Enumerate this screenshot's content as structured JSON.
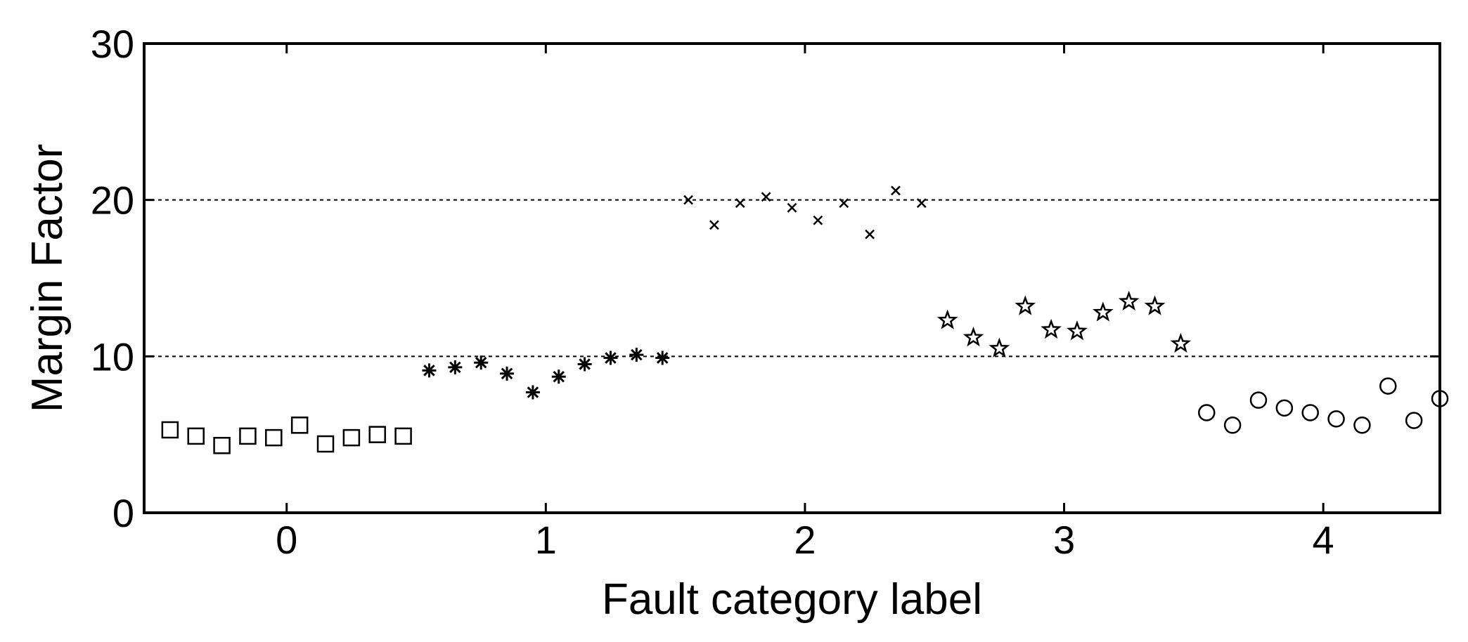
{
  "chart_data": {
    "type": "scatter",
    "title": "",
    "xlabel": "Fault category label",
    "ylabel": "Margin Factor",
    "xlim": [
      -0.55,
      4.45
    ],
    "ylim": [
      0,
      30
    ],
    "xticks": [
      0,
      1,
      2,
      3,
      4
    ],
    "yticks": [
      0,
      10,
      20,
      30
    ],
    "reference_lines": [
      10,
      20
    ],
    "grid": false,
    "legend": "none",
    "colors": {
      "marker": "#000000",
      "axis": "#000000",
      "refline": "#000000"
    },
    "series": [
      {
        "marker": "square",
        "x": [
          -0.45,
          -0.35,
          -0.25,
          -0.15,
          -0.05,
          0.05,
          0.15,
          0.25,
          0.35,
          0.45
        ],
        "y": [
          5.3,
          4.9,
          4.3,
          4.9,
          4.8,
          5.6,
          4.4,
          4.8,
          5.0,
          4.9
        ]
      },
      {
        "marker": "asterisk",
        "x": [
          0.55,
          0.65,
          0.75,
          0.85,
          0.95,
          1.05,
          1.15,
          1.25,
          1.35,
          1.45
        ],
        "y": [
          9.1,
          9.3,
          9.6,
          8.9,
          7.7,
          8.7,
          9.5,
          9.9,
          10.1,
          9.9
        ]
      },
      {
        "marker": "x",
        "x": [
          1.55,
          1.65,
          1.75,
          1.85,
          1.95,
          2.05,
          2.15,
          2.25,
          2.35,
          2.45
        ],
        "y": [
          20.0,
          18.4,
          19.8,
          20.2,
          19.5,
          18.7,
          19.8,
          17.8,
          20.6,
          19.8
        ]
      },
      {
        "marker": "pentagram",
        "x": [
          2.55,
          2.65,
          2.75,
          2.85,
          2.95,
          3.05,
          3.15,
          3.25,
          3.35,
          3.45
        ],
        "y": [
          12.3,
          11.2,
          10.5,
          13.2,
          11.7,
          11.6,
          12.8,
          13.5,
          13.2,
          10.8
        ]
      },
      {
        "marker": "circle",
        "x": [
          3.55,
          3.65,
          3.75,
          3.85,
          3.95,
          4.05,
          4.15,
          4.25,
          4.35,
          4.45
        ],
        "y": [
          6.4,
          5.6,
          7.2,
          6.7,
          6.4,
          6.0,
          5.6,
          8.1,
          5.9,
          7.3
        ]
      }
    ]
  }
}
